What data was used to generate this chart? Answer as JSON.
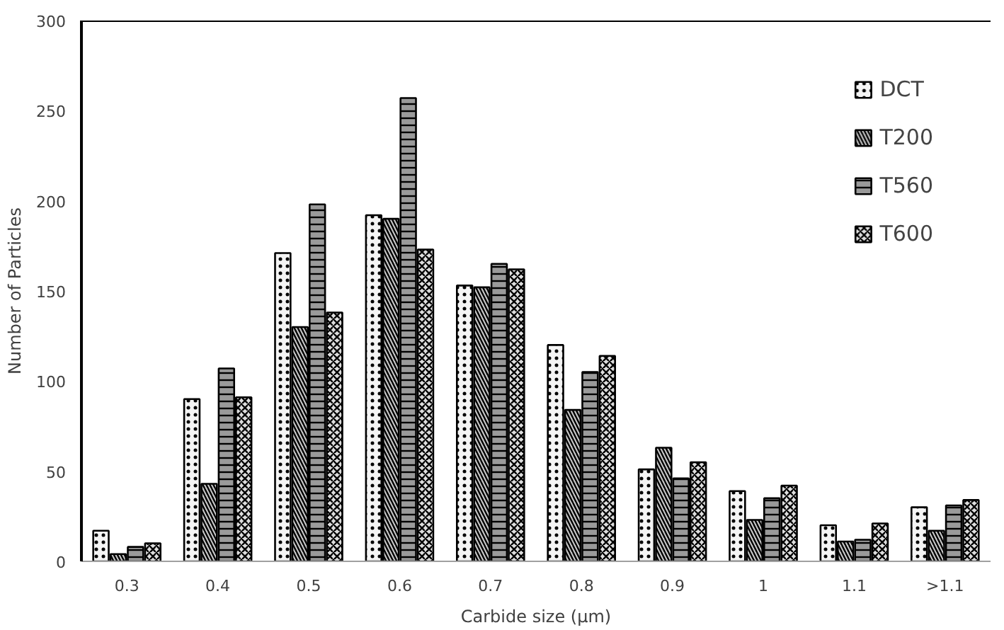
{
  "chart_data": {
    "type": "bar",
    "xlabel": "Carbide size (μm)",
    "ylabel": "Number of Particles",
    "categories": [
      "0.3",
      "0.4",
      "0.5",
      "0.6",
      "0.7",
      "0.8",
      "0.9",
      "1",
      "1.1",
      ">1.1"
    ],
    "series": [
      {
        "name": "DCT",
        "color": "#f4f4f4",
        "values": [
          17,
          90,
          171,
          192,
          153,
          120,
          51,
          39,
          20,
          30
        ]
      },
      {
        "name": "T200",
        "color": "#c8c8c8",
        "values": [
          4,
          43,
          130,
          190,
          152,
          84,
          63,
          23,
          11,
          17
        ]
      },
      {
        "name": "T560",
        "color": "#9a9a9a",
        "values": [
          8,
          107,
          198,
          257,
          165,
          105,
          46,
          35,
          12,
          31
        ]
      },
      {
        "name": "T600",
        "color": "#dedede",
        "values": [
          10,
          91,
          138,
          173,
          162,
          114,
          55,
          42,
          21,
          34
        ]
      }
    ],
    "ylim": [
      0,
      300
    ],
    "yticks": [
      0,
      50,
      100,
      150,
      200,
      250,
      300
    ],
    "grid": false,
    "legend": "right"
  }
}
